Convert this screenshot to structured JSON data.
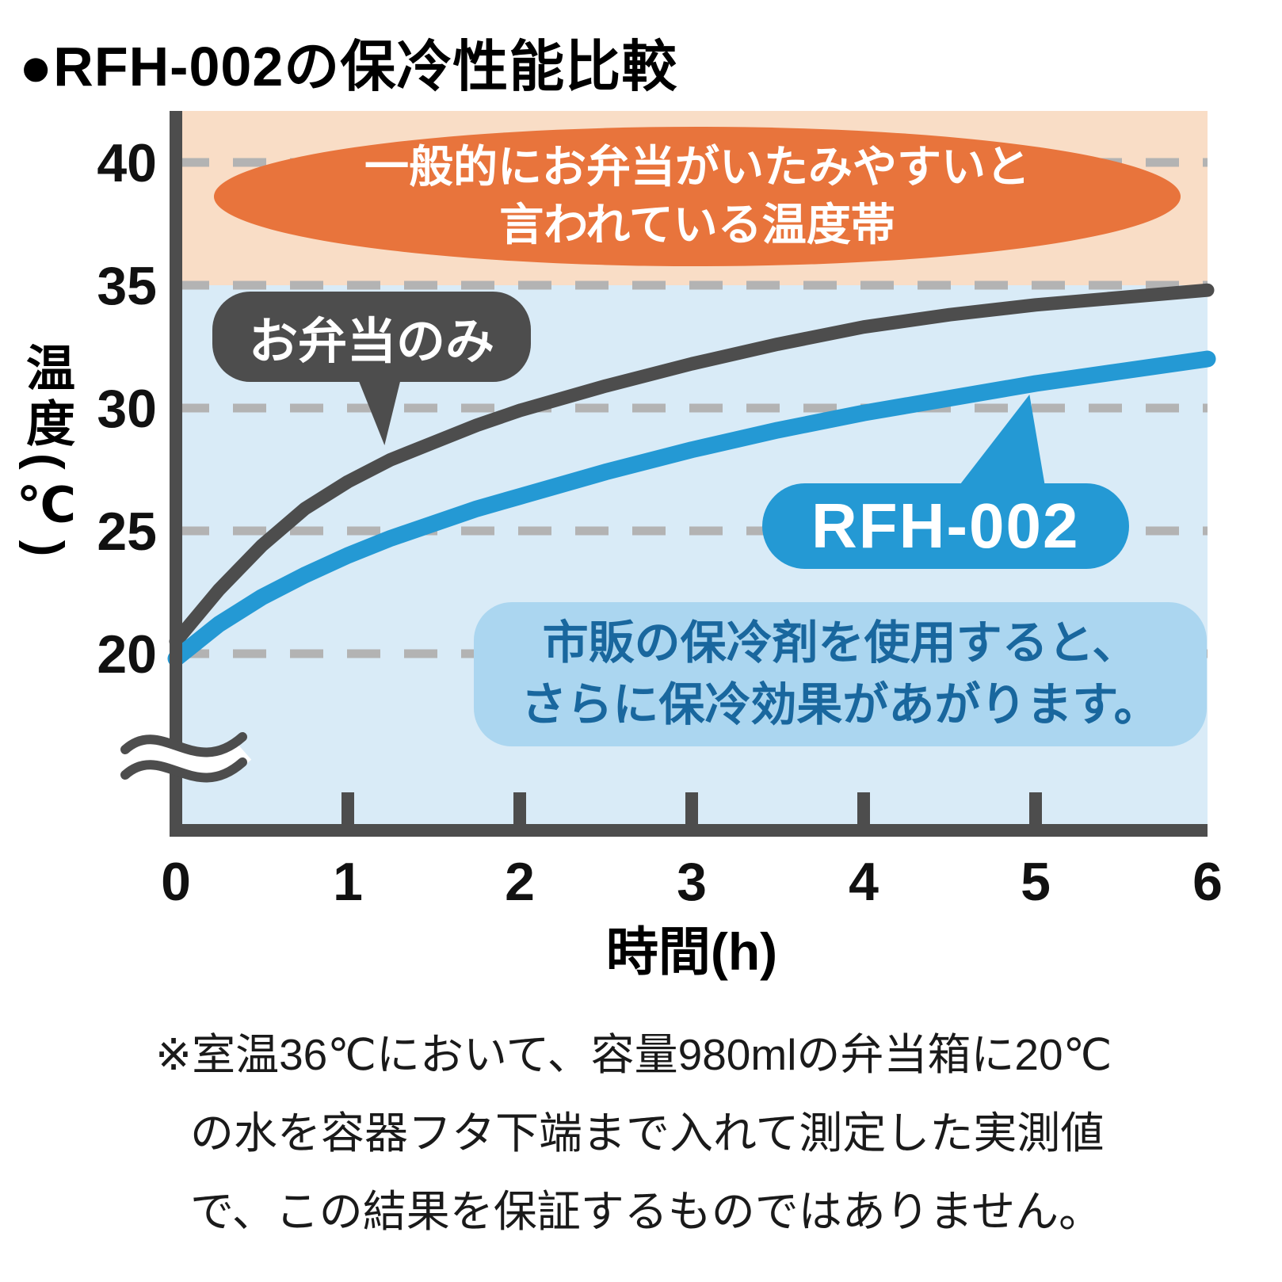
{
  "title": "●RFH-002の保冷性能比較",
  "chart_data": {
    "type": "line",
    "title": "RFH-002の保冷性能比較",
    "xlabel": "時間(h)",
    "ylabel": "温度(℃)",
    "xlim": [
      0,
      6
    ],
    "ylim": [
      20,
      42
    ],
    "x_ticks": [
      0,
      1,
      2,
      3,
      4,
      5,
      6
    ],
    "y_ticks": [
      20,
      25,
      30,
      35,
      40
    ],
    "grid": "dashed-horizontal",
    "axis_break_below": 20,
    "x": [
      0,
      0.25,
      0.5,
      0.75,
      1,
      1.25,
      1.5,
      1.75,
      2,
      2.5,
      3,
      3.5,
      4,
      4.5,
      5,
      5.5,
      6
    ],
    "series": [
      {
        "name": "お弁当のみ",
        "color": "#4d4d4d",
        "width": 17,
        "values": [
          20.5,
          22.6,
          24.4,
          25.9,
          27.0,
          27.9,
          28.6,
          29.3,
          29.9,
          30.9,
          31.8,
          32.6,
          33.3,
          33.8,
          34.2,
          34.5,
          34.8
        ]
      },
      {
        "name": "RFH-002",
        "color": "#2499d4",
        "width": 21,
        "values": [
          19.8,
          21.2,
          22.3,
          23.2,
          24.0,
          24.7,
          25.3,
          25.9,
          26.4,
          27.4,
          28.3,
          29.1,
          29.8,
          30.4,
          31.0,
          31.5,
          32.0
        ]
      }
    ],
    "bands": [
      {
        "name": "danger-zone",
        "from": 35,
        "to": 42.2,
        "color": "#f9ddc6"
      },
      {
        "name": "plot-area",
        "from": "bottom",
        "to": 35,
        "color": "#d9ebf7"
      }
    ],
    "colors": {
      "axis": "#4d4d4d",
      "gridline": "#b3b3b3",
      "danger_ellipse": "#e8743c",
      "note_bg": "#abd6f0",
      "note_text": "#19679e"
    }
  },
  "annotations": {
    "danger_zone": {
      "line1": "一般的にお弁当がいたみやすいと",
      "line2": "言われている温度帯"
    },
    "bento_label": "お弁当のみ",
    "rfh_label": "RFH-002",
    "note": {
      "line1": "市販の保冷剤を使用すると、",
      "line2": "さらに保冷効果があがります。"
    }
  },
  "footnote": {
    "line1": "※室温36℃において、容量980mlの弁当箱に20℃",
    "line2": "の水を容器フタ下端まで入れて測定した実測値",
    "line3": "で、この結果を保証するものではありません。"
  }
}
